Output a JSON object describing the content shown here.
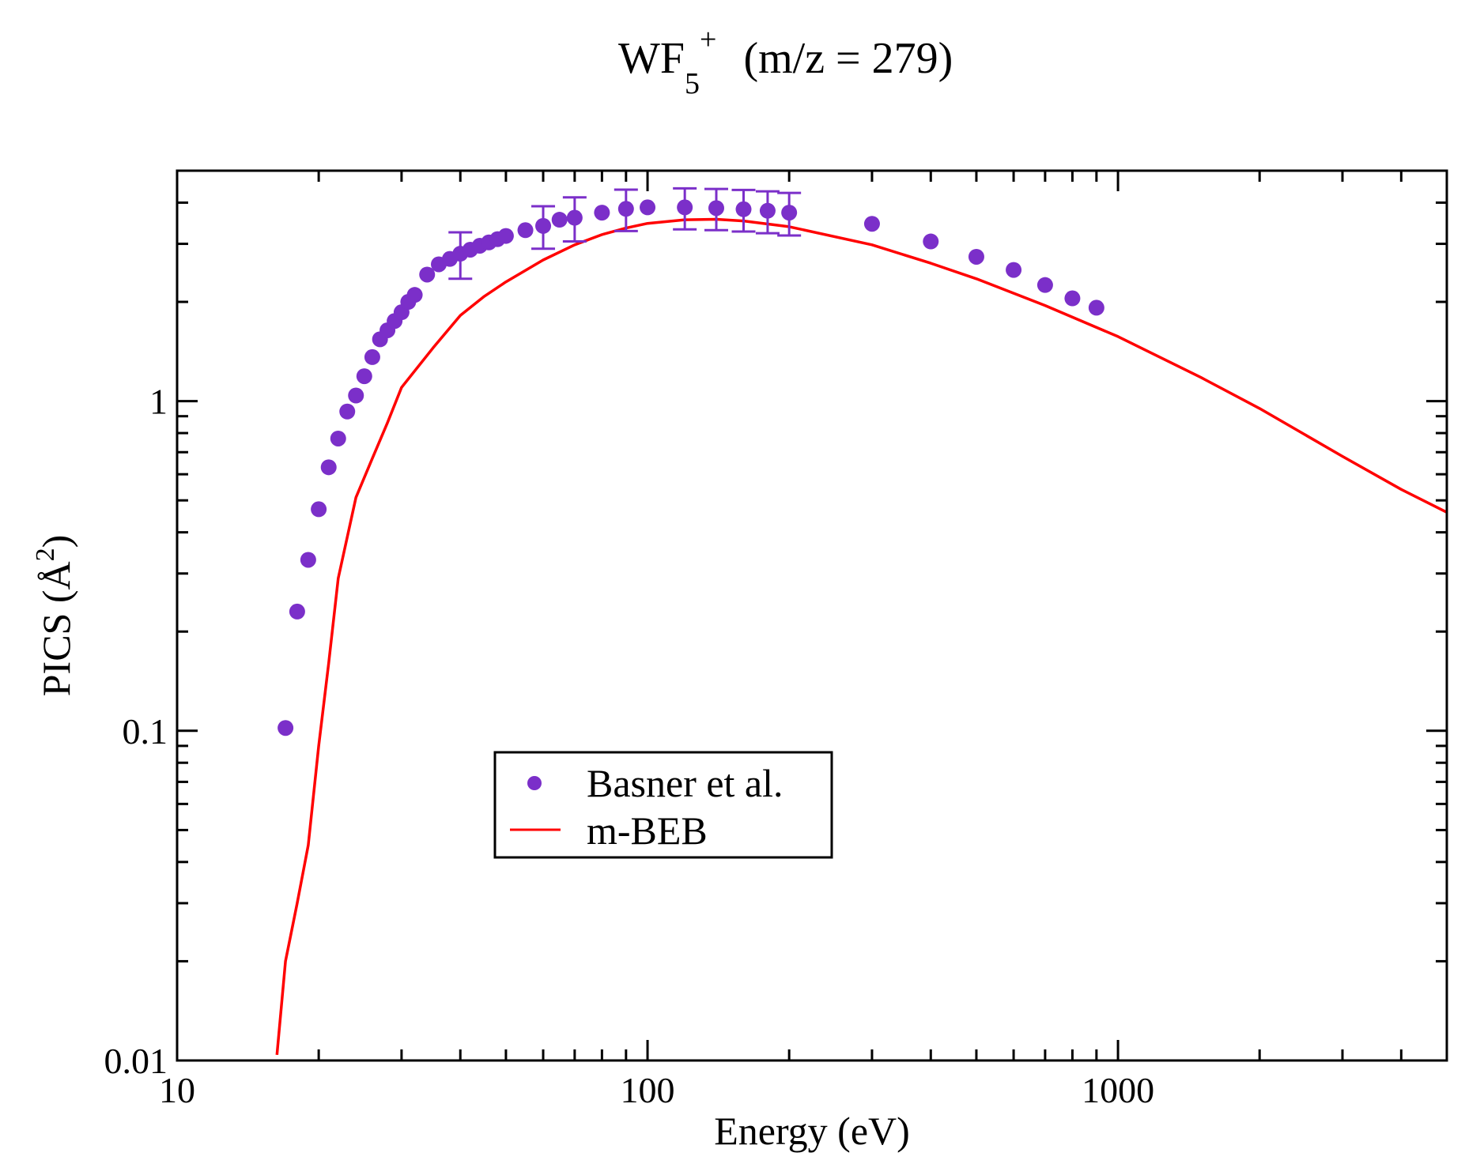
{
  "chart_data": {
    "type": "scatter",
    "title": {
      "base": "WF",
      "subscript": "5",
      "superscript": "+",
      "rest": "(m/z = 279)"
    },
    "xlabel": "Energy (eV)",
    "ylabel": {
      "prefix": "PICS (",
      "unit": "Å",
      "superscript": "2",
      "suffix": ")"
    },
    "xscale": "log",
    "yscale": "log",
    "xlim": [
      10,
      5000
    ],
    "ylim": [
      0.01,
      5
    ],
    "xticks": [
      {
        "value": 10,
        "label": "10"
      },
      {
        "value": 100,
        "label": "100"
      },
      {
        "value": 1000,
        "label": "1000"
      }
    ],
    "yticks": [
      {
        "value": 0.01,
        "label": "0.01"
      },
      {
        "value": 0.1,
        "label": "0.1"
      },
      {
        "value": 1,
        "label": "1"
      }
    ],
    "grid": false,
    "legend_position": "center-left",
    "series": [
      {
        "name": "Basner et al.",
        "kind": "markers",
        "color": "#7b2fc9",
        "points": [
          {
            "x": 17,
            "y": 0.102
          },
          {
            "x": 18,
            "y": 0.23
          },
          {
            "x": 19,
            "y": 0.33
          },
          {
            "x": 20,
            "y": 0.47
          },
          {
            "x": 21,
            "y": 0.63
          },
          {
            "x": 22,
            "y": 0.77
          },
          {
            "x": 23,
            "y": 0.93
          },
          {
            "x": 24,
            "y": 1.04
          },
          {
            "x": 25,
            "y": 1.19
          },
          {
            "x": 26,
            "y": 1.36
          },
          {
            "x": 27,
            "y": 1.54
          },
          {
            "x": 28,
            "y": 1.64
          },
          {
            "x": 29,
            "y": 1.75
          },
          {
            "x": 30,
            "y": 1.86
          },
          {
            "x": 31,
            "y": 2.0
          },
          {
            "x": 32,
            "y": 2.1
          },
          {
            "x": 34,
            "y": 2.42
          },
          {
            "x": 36,
            "y": 2.6
          },
          {
            "x": 38,
            "y": 2.7
          },
          {
            "x": 40,
            "y": 2.8,
            "err": 0.45
          },
          {
            "x": 42,
            "y": 2.88
          },
          {
            "x": 44,
            "y": 2.96
          },
          {
            "x": 46,
            "y": 3.03
          },
          {
            "x": 48,
            "y": 3.1
          },
          {
            "x": 50,
            "y": 3.17
          },
          {
            "x": 55,
            "y": 3.3
          },
          {
            "x": 60,
            "y": 3.4,
            "err": 0.5
          },
          {
            "x": 65,
            "y": 3.55
          },
          {
            "x": 70,
            "y": 3.6,
            "err": 0.55
          },
          {
            "x": 80,
            "y": 3.73
          },
          {
            "x": 90,
            "y": 3.83,
            "err": 0.55
          },
          {
            "x": 100,
            "y": 3.87
          },
          {
            "x": 120,
            "y": 3.87,
            "err": 0.55
          },
          {
            "x": 140,
            "y": 3.85,
            "err": 0.55
          },
          {
            "x": 160,
            "y": 3.82,
            "err": 0.55
          },
          {
            "x": 180,
            "y": 3.78,
            "err": 0.55
          },
          {
            "x": 200,
            "y": 3.73,
            "err": 0.55
          },
          {
            "x": 300,
            "y": 3.45
          },
          {
            "x": 400,
            "y": 3.05
          },
          {
            "x": 500,
            "y": 2.74
          },
          {
            "x": 600,
            "y": 2.5
          },
          {
            "x": 700,
            "y": 2.25
          },
          {
            "x": 800,
            "y": 2.05
          },
          {
            "x": 900,
            "y": 1.92
          }
        ]
      },
      {
        "name": "m-BEB",
        "kind": "line",
        "color": "#ff0000",
        "points": [
          {
            "x": 16.3,
            "y": 0.0104
          },
          {
            "x": 17,
            "y": 0.02
          },
          {
            "x": 18,
            "y": 0.03
          },
          {
            "x": 19,
            "y": 0.045
          },
          {
            "x": 20,
            "y": 0.09
          },
          {
            "x": 21,
            "y": 0.16
          },
          {
            "x": 22,
            "y": 0.29
          },
          {
            "x": 24,
            "y": 0.51
          },
          {
            "x": 26,
            "y": 0.67
          },
          {
            "x": 28,
            "y": 0.86
          },
          {
            "x": 30,
            "y": 1.1
          },
          {
            "x": 35,
            "y": 1.45
          },
          {
            "x": 40,
            "y": 1.82
          },
          {
            "x": 45,
            "y": 2.08
          },
          {
            "x": 50,
            "y": 2.3
          },
          {
            "x": 60,
            "y": 2.68
          },
          {
            "x": 70,
            "y": 2.98
          },
          {
            "x": 80,
            "y": 3.2
          },
          {
            "x": 90,
            "y": 3.35
          },
          {
            "x": 100,
            "y": 3.46
          },
          {
            "x": 120,
            "y": 3.55
          },
          {
            "x": 140,
            "y": 3.56
          },
          {
            "x": 160,
            "y": 3.52
          },
          {
            "x": 200,
            "y": 3.38
          },
          {
            "x": 300,
            "y": 2.98
          },
          {
            "x": 400,
            "y": 2.62
          },
          {
            "x": 500,
            "y": 2.35
          },
          {
            "x": 700,
            "y": 1.95
          },
          {
            "x": 1000,
            "y": 1.57
          },
          {
            "x": 1500,
            "y": 1.18
          },
          {
            "x": 2000,
            "y": 0.95
          },
          {
            "x": 3000,
            "y": 0.68
          },
          {
            "x": 4000,
            "y": 0.54
          },
          {
            "x": 5000,
            "y": 0.46
          }
        ]
      }
    ]
  }
}
